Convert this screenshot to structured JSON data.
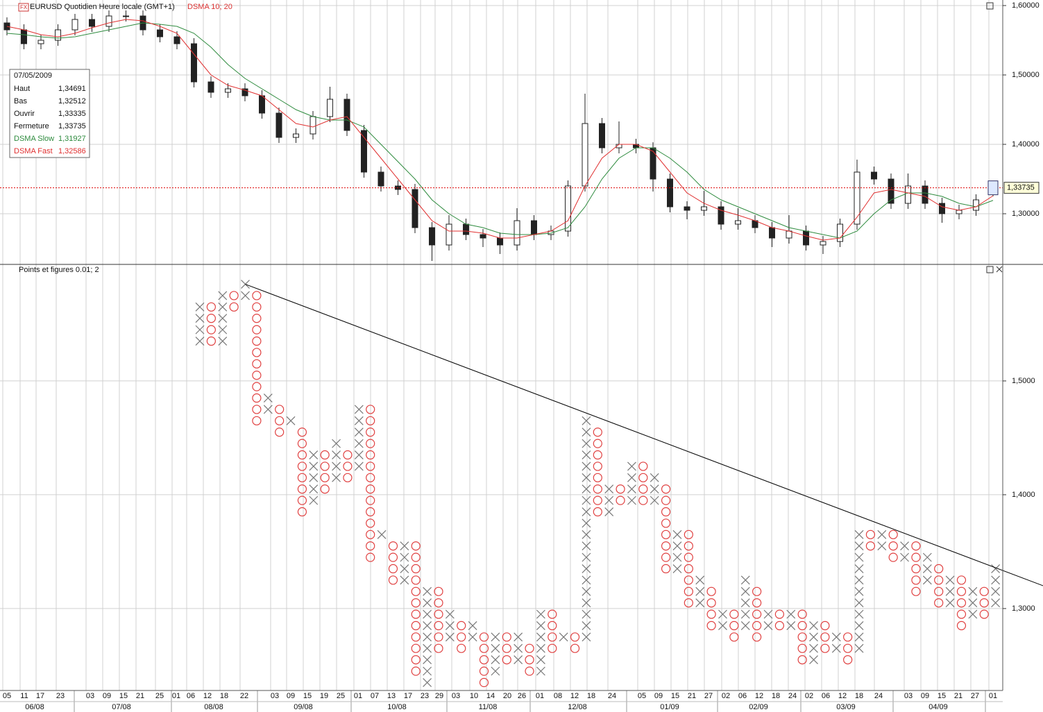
{
  "chart_data": [
    {
      "type": "candlestick",
      "title": "EURUSD Quotidien Heure locale (GMT+1)",
      "subtitle": "DSMA 10; 20",
      "ylim": [
        1.228,
        1.608
      ],
      "yticks": [
        {
          "value": 1.6,
          "label": "1,60000"
        },
        {
          "value": 1.5,
          "label": "1,50000"
        },
        {
          "value": 1.4,
          "label": "1,40000"
        },
        {
          "value": 1.3,
          "label": "1,30000"
        }
      ],
      "open": [
        1.575,
        1.565,
        1.545,
        1.55,
        1.565,
        1.58,
        1.57,
        1.585,
        1.585,
        1.565,
        1.555,
        1.545,
        1.49,
        1.475,
        1.48,
        1.47,
        1.445,
        1.41,
        1.415,
        1.44,
        1.465,
        1.42,
        1.36,
        1.34,
        1.335,
        1.28,
        1.255,
        1.285,
        1.27,
        1.265,
        1.255,
        1.29,
        1.27,
        1.275,
        1.34,
        1.43,
        1.395,
        1.4,
        1.395,
        1.35,
        1.31,
        1.305,
        1.31,
        1.285,
        1.29,
        1.28,
        1.265,
        1.275,
        1.255,
        1.26,
        1.285,
        1.36,
        1.35,
        1.315,
        1.34,
        1.315,
        1.3,
        1.305,
        1.33335
      ],
      "high": [
        1.583,
        1.573,
        1.558,
        1.573,
        1.588,
        1.588,
        1.593,
        1.593,
        1.593,
        1.573,
        1.563,
        1.553,
        1.498,
        1.488,
        1.488,
        1.478,
        1.453,
        1.423,
        1.448,
        1.483,
        1.473,
        1.428,
        1.368,
        1.348,
        1.343,
        1.288,
        1.298,
        1.293,
        1.278,
        1.273,
        1.308,
        1.298,
        1.283,
        1.348,
        1.473,
        1.438,
        1.433,
        1.408,
        1.403,
        1.358,
        1.318,
        1.333,
        1.318,
        1.308,
        1.298,
        1.288,
        1.298,
        1.283,
        1.268,
        1.293,
        1.378,
        1.368,
        1.358,
        1.358,
        1.348,
        1.323,
        1.313,
        1.328,
        1.34691
      ],
      "low": [
        1.557,
        1.537,
        1.537,
        1.542,
        1.557,
        1.562,
        1.562,
        1.577,
        1.557,
        1.547,
        1.537,
        1.482,
        1.467,
        1.467,
        1.462,
        1.437,
        1.402,
        1.402,
        1.407,
        1.432,
        1.412,
        1.352,
        1.332,
        1.327,
        1.272,
        1.232,
        1.247,
        1.262,
        1.252,
        1.242,
        1.247,
        1.262,
        1.262,
        1.267,
        1.332,
        1.387,
        1.387,
        1.387,
        1.332,
        1.302,
        1.292,
        1.297,
        1.277,
        1.277,
        1.272,
        1.252,
        1.257,
        1.247,
        1.242,
        1.252,
        1.277,
        1.342,
        1.307,
        1.307,
        1.307,
        1.287,
        1.292,
        1.297,
        1.32512
      ],
      "close": [
        1.565,
        1.545,
        1.55,
        1.565,
        1.58,
        1.57,
        1.585,
        1.585,
        1.565,
        1.555,
        1.545,
        1.49,
        1.475,
        1.48,
        1.47,
        1.445,
        1.41,
        1.415,
        1.44,
        1.465,
        1.42,
        1.36,
        1.34,
        1.335,
        1.28,
        1.255,
        1.285,
        1.27,
        1.265,
        1.255,
        1.29,
        1.27,
        1.275,
        1.34,
        1.43,
        1.395,
        1.4,
        1.395,
        1.35,
        1.31,
        1.305,
        1.31,
        1.285,
        1.29,
        1.28,
        1.265,
        1.275,
        1.255,
        1.26,
        1.285,
        1.36,
        1.35,
        1.315,
        1.34,
        1.315,
        1.3,
        1.305,
        1.32,
        1.33735
      ],
      "series": [
        {
          "name": "DSMA Slow",
          "color": "#2e8b3e",
          "values": [
            1.56,
            1.558,
            1.555,
            1.553,
            1.555,
            1.56,
            1.565,
            1.57,
            1.575,
            1.573,
            1.57,
            1.56,
            1.54,
            1.515,
            1.495,
            1.48,
            1.465,
            1.45,
            1.44,
            1.435,
            1.435,
            1.425,
            1.4,
            1.375,
            1.35,
            1.32,
            1.3,
            1.285,
            1.28,
            1.272,
            1.27,
            1.27,
            1.272,
            1.28,
            1.31,
            1.35,
            1.38,
            1.395,
            1.395,
            1.38,
            1.36,
            1.335,
            1.32,
            1.31,
            1.3,
            1.29,
            1.28,
            1.275,
            1.27,
            1.265,
            1.275,
            1.3,
            1.32,
            1.33,
            1.33,
            1.325,
            1.315,
            1.31,
            1.31927
          ]
        },
        {
          "name": "DSMA Fast",
          "color": "#e03030",
          "values": [
            1.57,
            1.565,
            1.558,
            1.555,
            1.56,
            1.568,
            1.575,
            1.58,
            1.578,
            1.57,
            1.56,
            1.53,
            1.5,
            1.485,
            1.478,
            1.47,
            1.45,
            1.43,
            1.425,
            1.435,
            1.44,
            1.41,
            1.38,
            1.35,
            1.32,
            1.29,
            1.275,
            1.275,
            1.272,
            1.265,
            1.265,
            1.27,
            1.275,
            1.29,
            1.34,
            1.38,
            1.4,
            1.4,
            1.39,
            1.36,
            1.33,
            1.315,
            1.305,
            1.298,
            1.29,
            1.28,
            1.275,
            1.268,
            1.262,
            1.265,
            1.295,
            1.33,
            1.335,
            1.33,
            1.325,
            1.31,
            1.305,
            1.31,
            1.32586
          ]
        }
      ],
      "last_price_label": "1,33735",
      "info_box": {
        "date": "07/05/2009",
        "rows": [
          {
            "label": "Haut",
            "value": "1,34691"
          },
          {
            "label": "Bas",
            "value": "1,32512"
          },
          {
            "label": "Ouvrir",
            "value": "1,33335"
          },
          {
            "label": "Fermeture",
            "value": "1,33735"
          }
        ],
        "series_values": [
          "1,31927",
          "1,32586"
        ]
      }
    },
    {
      "type": "point_and_figure",
      "title": "Points et figures 0.01; 2",
      "box_size": 0.01,
      "ylim": [
        1.228,
        1.6024
      ],
      "yticks": [
        {
          "value": 1.5,
          "label": "1,5000"
        },
        {
          "value": 1.4,
          "label": "1,4000"
        },
        {
          "value": 1.3,
          "label": "1,3000"
        }
      ],
      "kind": [
        "X",
        "O",
        "X",
        "O",
        "X",
        "O",
        "X",
        "O",
        "X",
        "O",
        "X",
        "O",
        "X",
        "O",
        "X",
        "O",
        "X",
        "O",
        "X",
        "O",
        "X",
        "O",
        "X",
        "O",
        "X",
        "O",
        "X",
        "O",
        "X",
        "O",
        "X",
        "O",
        "X",
        "O",
        "X",
        "O",
        "X",
        "O",
        "X",
        "O",
        "X",
        "O",
        "X",
        "O",
        "X",
        "O",
        "X",
        "O",
        "X",
        "O",
        "X",
        "O",
        "X",
        "O",
        "X",
        "O",
        "X",
        "O",
        "X",
        "O",
        "X",
        "O",
        "X",
        "O",
        "X",
        "O",
        "X",
        "O",
        "X",
        "O",
        "X"
      ],
      "low": [
        1.53,
        1.53,
        1.53,
        1.56,
        1.57,
        1.46,
        1.47,
        1.45,
        1.46,
        1.38,
        1.39,
        1.4,
        1.41,
        1.41,
        1.42,
        1.34,
        1.36,
        1.32,
        1.32,
        1.24,
        1.23,
        1.26,
        1.27,
        1.26,
        1.27,
        1.23,
        1.24,
        1.25,
        1.25,
        1.24,
        1.24,
        1.26,
        1.27,
        1.26,
        1.27,
        1.38,
        1.38,
        1.39,
        1.39,
        1.39,
        1.39,
        1.33,
        1.33,
        1.3,
        1.3,
        1.28,
        1.28,
        1.27,
        1.28,
        1.27,
        1.28,
        1.28,
        1.28,
        1.25,
        1.25,
        1.26,
        1.26,
        1.25,
        1.26,
        1.35,
        1.35,
        1.34,
        1.34,
        1.31,
        1.32,
        1.3,
        1.3,
        1.28,
        1.29,
        1.29,
        1.3
      ],
      "high": [
        1.57,
        1.57,
        1.58,
        1.58,
        1.59,
        1.58,
        1.49,
        1.48,
        1.47,
        1.46,
        1.44,
        1.44,
        1.45,
        1.44,
        1.48,
        1.48,
        1.37,
        1.36,
        1.36,
        1.36,
        1.32,
        1.32,
        1.3,
        1.29,
        1.29,
        1.28,
        1.28,
        1.28,
        1.28,
        1.27,
        1.3,
        1.3,
        1.28,
        1.28,
        1.47,
        1.46,
        1.41,
        1.41,
        1.43,
        1.43,
        1.42,
        1.41,
        1.37,
        1.37,
        1.33,
        1.32,
        1.3,
        1.3,
        1.33,
        1.32,
        1.3,
        1.3,
        1.3,
        1.3,
        1.29,
        1.29,
        1.28,
        1.28,
        1.37,
        1.37,
        1.37,
        1.37,
        1.36,
        1.36,
        1.35,
        1.34,
        1.33,
        1.33,
        1.32,
        1.32,
        1.34
      ],
      "trendline": {
        "x": [
          4,
          74.2
        ],
        "y": [
          1.585,
          1.32
        ]
      }
    }
  ],
  "date_axis": {
    "days": [
      "05",
      "11",
      "17",
      "23",
      "03",
      "09",
      "15",
      "21",
      "25",
      "01",
      "06",
      "12",
      "18",
      "22",
      "03",
      "09",
      "15",
      "19",
      "25",
      "01",
      "07",
      "13",
      "17",
      "23",
      "29",
      "03",
      "10",
      "14",
      "20",
      "26",
      "01",
      "08",
      "12",
      "18",
      "24",
      "05",
      "09",
      "15",
      "21",
      "27",
      "02",
      "06",
      "12",
      "18",
      "24",
      "02",
      "06",
      "12",
      "18",
      "24",
      "03",
      "09",
      "15",
      "21",
      "27",
      "01"
    ],
    "months": [
      "06/08",
      "07/08",
      "08/08",
      "09/08",
      "10/08",
      "11/08",
      "12/08",
      "01/09",
      "02/09",
      "03/09",
      "04/09"
    ]
  }
}
